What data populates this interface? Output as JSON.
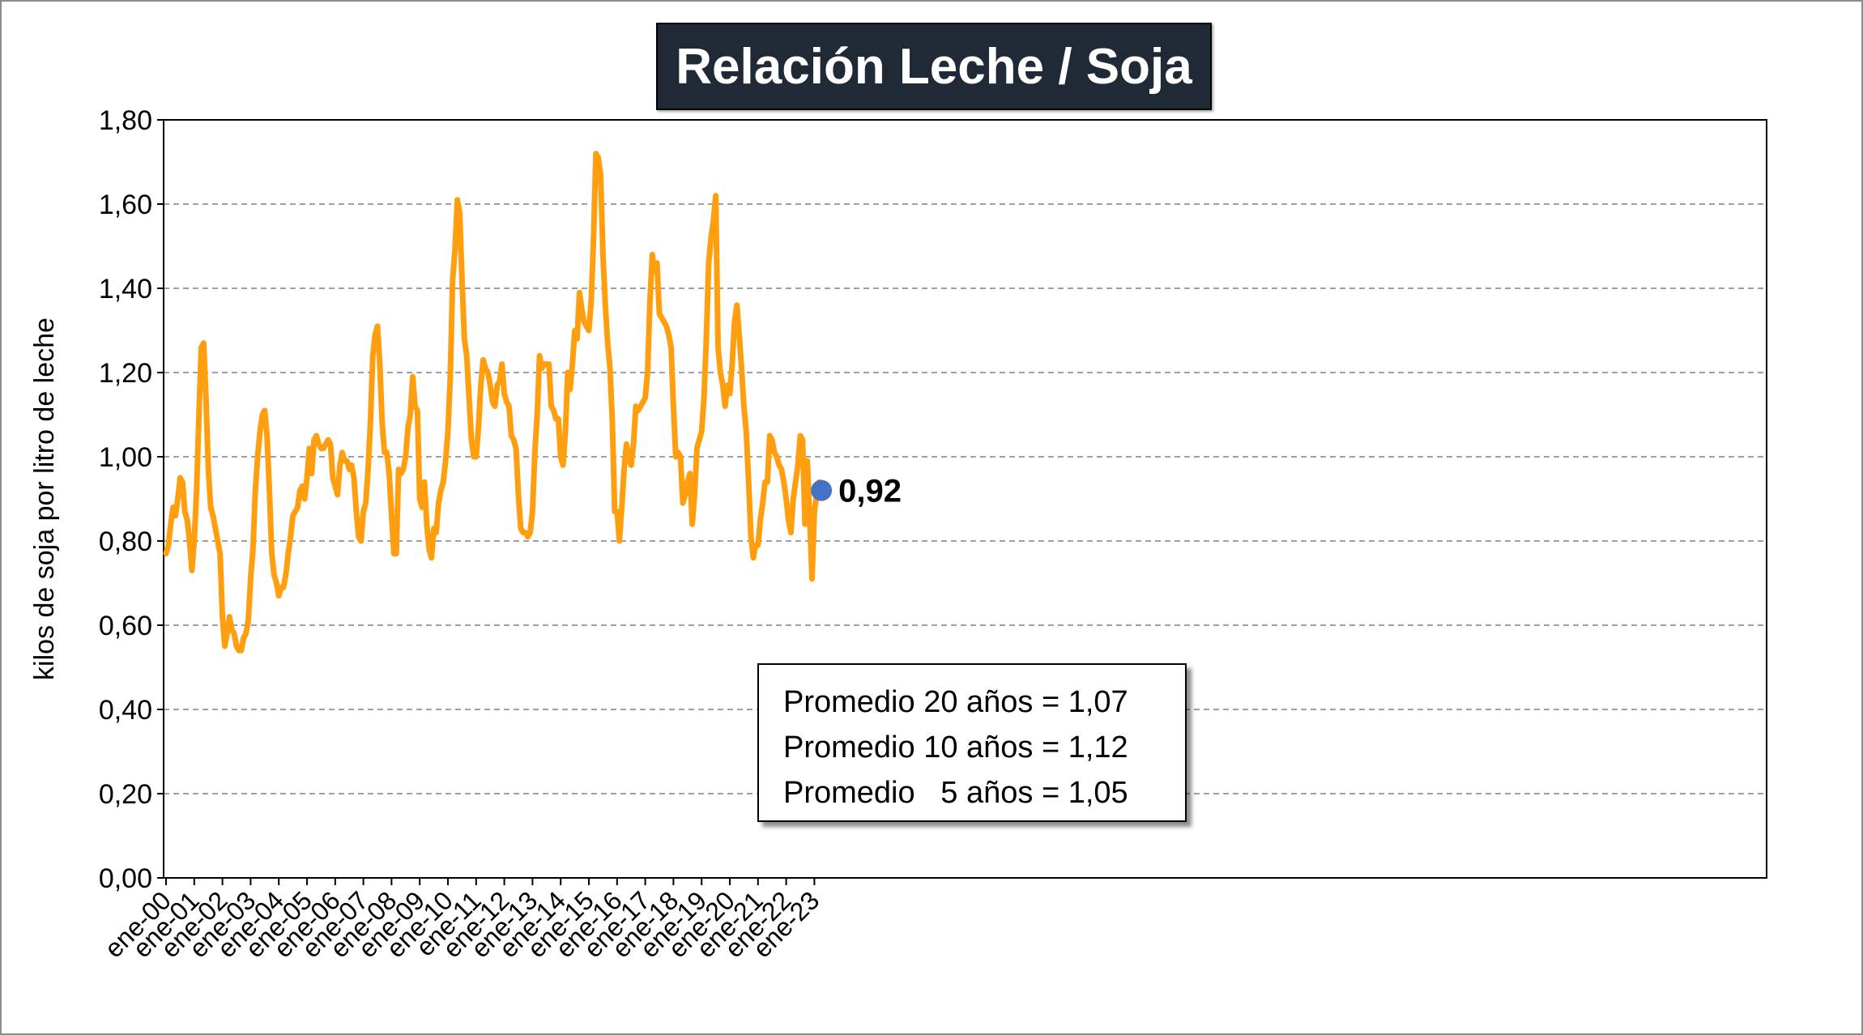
{
  "chart_data": {
    "type": "line",
    "title": "Relación Leche / Soja",
    "ylabel": "kilos de soja por litro de leche",
    "xlabel": "",
    "ylim": [
      0,
      1.8
    ],
    "y_ticks": [
      "0,00",
      "0,20",
      "0,40",
      "0,60",
      "0,80",
      "1,00",
      "1,20",
      "1,40",
      "1,60",
      "1,80"
    ],
    "x_ticks": [
      "ene-00",
      "ene-01",
      "ene-02",
      "ene-03",
      "ene-04",
      "ene-05",
      "ene-06",
      "ene-07",
      "ene-08",
      "ene-09",
      "ene-10",
      "ene-11",
      "ene-12",
      "ene-13",
      "ene-14",
      "ene-15",
      "ene-16",
      "ene-17",
      "ene-18",
      "ene-19",
      "ene-20",
      "ene-21",
      "ene-22",
      "ene-23"
    ],
    "grid": true,
    "line_color": "#ff9f0f",
    "last_point_color": "#4472c4",
    "last_value_label": "0,92",
    "series": [
      {
        "values": [
          0.77,
          0.79,
          0.84,
          0.88,
          0.86,
          0.9,
          0.95,
          0.94,
          0.87,
          0.85,
          0.8,
          0.73,
          0.8,
          0.92,
          1.1,
          1.26,
          1.27,
          1.14,
          0.97,
          0.88,
          0.86,
          0.83,
          0.8,
          0.77,
          0.62,
          0.55,
          0.58,
          0.62,
          0.59,
          0.58,
          0.55,
          0.54,
          0.54,
          0.57,
          0.58,
          0.61,
          0.71,
          0.78,
          0.92,
          1.0,
          1.06,
          1.1,
          1.11,
          1.05,
          0.92,
          0.77,
          0.72,
          0.7,
          0.67,
          0.69,
          0.69,
          0.72,
          0.77,
          0.81,
          0.86,
          0.87,
          0.88,
          0.92,
          0.93,
          0.9,
          0.95,
          1.02,
          0.96,
          1.04,
          1.05,
          1.03,
          1.02,
          1.02,
          1.03,
          1.04,
          1.03,
          0.95,
          0.93,
          0.91,
          0.98,
          1.01,
          0.99,
          0.99,
          0.97,
          0.98,
          0.95,
          0.87,
          0.81,
          0.8,
          0.87,
          0.89,
          0.97,
          1.08,
          1.24,
          1.29,
          1.31,
          1.22,
          1.08,
          1.01,
          1.01,
          0.96,
          0.86,
          0.77,
          0.77,
          0.97,
          0.96,
          0.97,
          1.0,
          1.07,
          1.1,
          1.19,
          1.12,
          1.11,
          0.9,
          0.88,
          0.94,
          0.84,
          0.78,
          0.76,
          0.83,
          0.82,
          0.89,
          0.92,
          0.94,
          0.99,
          1.06,
          1.19,
          1.42,
          1.49,
          1.61,
          1.58,
          1.42,
          1.28,
          1.24,
          1.14,
          1.04,
          1.0,
          1.0,
          1.07,
          1.17,
          1.23,
          1.21,
          1.2,
          1.17,
          1.13,
          1.12,
          1.17,
          1.18,
          1.22,
          1.15,
          1.13,
          1.12,
          1.05,
          1.04,
          1.02,
          0.91,
          0.83,
          0.82,
          0.82,
          0.81,
          0.82,
          0.87,
          1.01,
          1.1,
          1.24,
          1.21,
          1.22,
          1.22,
          1.22,
          1.12,
          1.11,
          1.09,
          1.09,
          1.0,
          0.98,
          1.06,
          1.2,
          1.16,
          1.22,
          1.3,
          1.28,
          1.39,
          1.35,
          1.32,
          1.31,
          1.3,
          1.37,
          1.52,
          1.72,
          1.71,
          1.67,
          1.48,
          1.36,
          1.27,
          1.21,
          1.08,
          0.87,
          0.87,
          0.8,
          0.88,
          0.97,
          1.03,
          1.0,
          0.98,
          1.03,
          1.12,
          1.11,
          1.12,
          1.13,
          1.14,
          1.2,
          1.37,
          1.48,
          1.44,
          1.46,
          1.34,
          1.33,
          1.32,
          1.31,
          1.29,
          1.26,
          1.12,
          1.0,
          1.01,
          1.0,
          0.89,
          0.91,
          0.94,
          0.96,
          0.84,
          0.91,
          1.02,
          1.04,
          1.06,
          1.14,
          1.28,
          1.46,
          1.52,
          1.56,
          1.62,
          1.26,
          1.2,
          1.17,
          1.12,
          1.17,
          1.15,
          1.22,
          1.32,
          1.36,
          1.29,
          1.21,
          1.12,
          1.06,
          0.94,
          0.81,
          0.76,
          0.79,
          0.79,
          0.85,
          0.89,
          0.94,
          0.94,
          1.05,
          1.04,
          1.01,
          1.0,
          0.98,
          0.97,
          0.94,
          0.9,
          0.85,
          0.82,
          0.9,
          0.94,
          0.98,
          1.05,
          1.04,
          0.84,
          0.99,
          0.86,
          0.71,
          0.87,
          0.91,
          0.94,
          0.92
        ]
      }
    ],
    "annotations": [
      "Promedio 20 años = 1,07",
      "Promedio 10 años = 1,12",
      "Promedio   5 años = 1,05"
    ]
  }
}
